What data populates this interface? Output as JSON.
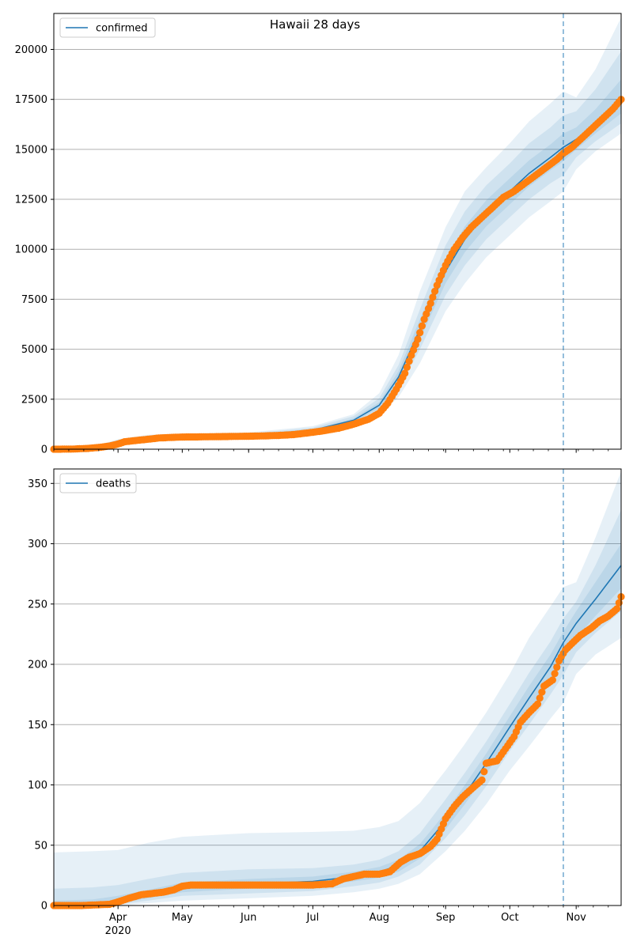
{
  "figure": {
    "title": "Hawaii 28 days",
    "colors": {
      "model": "#1f77b4",
      "observed": "#ff7f0e",
      "band": "#1f77b4",
      "grid": "#b0b0b0"
    }
  },
  "x_axis": {
    "type": "date",
    "domain": [
      "2020-03-02",
      "2020-11-22"
    ],
    "forecast_start": "2020-10-26",
    "ticks": [
      {
        "date": "2020-04-01",
        "label": "Apr",
        "year": "2020"
      },
      {
        "date": "2020-05-01",
        "label": "May"
      },
      {
        "date": "2020-06-01",
        "label": "Jun"
      },
      {
        "date": "2020-07-01",
        "label": "Jul"
      },
      {
        "date": "2020-08-01",
        "label": "Aug"
      },
      {
        "date": "2020-09-01",
        "label": "Sep"
      },
      {
        "date": "2020-10-01",
        "label": "Oct"
      },
      {
        "date": "2020-11-01",
        "label": "Nov"
      }
    ]
  },
  "chart_data": [
    {
      "type": "line",
      "legend": "confirmed",
      "legend_position": "top-left",
      "grid": "y",
      "ylim": [
        0,
        21800
      ],
      "yticks": [
        "0",
        "2500",
        "5000",
        "7500",
        "10000",
        "12500",
        "15000",
        "17500",
        "20000"
      ],
      "model_x": [
        "2020-03-02",
        "2020-03-20",
        "2020-04-01",
        "2020-04-15",
        "2020-05-01",
        "2020-06-01",
        "2020-07-01",
        "2020-07-20",
        "2020-08-01",
        "2020-08-10",
        "2020-08-20",
        "2020-09-01",
        "2020-09-10",
        "2020-09-20",
        "2020-10-01",
        "2020-10-10",
        "2020-10-20",
        "2020-10-26",
        "2020-11-01",
        "2020-11-10",
        "2020-11-22"
      ],
      "model_y": [
        0,
        80,
        380,
        560,
        630,
        690,
        950,
        1450,
        2200,
        3600,
        6000,
        8900,
        10500,
        11800,
        12900,
        13800,
        14600,
        15100,
        15500,
        16300,
        17300
      ],
      "bands": [
        {
          "lower": [
            0,
            40,
            260,
            420,
            500,
            560,
            800,
            1200,
            1750,
            2600,
            4300,
            6900,
            8300,
            9600,
            10700,
            11600,
            12400,
            12900,
            14000,
            14900,
            15800
          ],
          "upper": [
            0,
            130,
            500,
            720,
            780,
            840,
            1150,
            1750,
            2800,
            4700,
            7900,
            11100,
            12900,
            14100,
            15300,
            16400,
            17300,
            17900,
            17600,
            19000,
            21600
          ]
        },
        {
          "lower": [
            0,
            50,
            300,
            470,
            550,
            610,
            850,
            1300,
            1900,
            3000,
            5000,
            7700,
            9200,
            10500,
            11600,
            12500,
            13300,
            13700,
            14600,
            15400,
            16300
          ],
          "upper": [
            0,
            115,
            460,
            660,
            720,
            780,
            1080,
            1650,
            2550,
            4200,
            7000,
            10200,
            11900,
            13200,
            14300,
            15300,
            16100,
            16700,
            16900,
            18000,
            19900
          ]
        },
        {
          "lower": [
            0,
            60,
            340,
            510,
            590,
            650,
            900,
            1370,
            2050,
            3300,
            5500,
            8300,
            9850,
            11150,
            12250,
            13150,
            13950,
            14400,
            15000,
            15800,
            16800
          ],
          "upper": [
            0,
            100,
            420,
            610,
            670,
            730,
            1010,
            1540,
            2350,
            3900,
            6500,
            9500,
            11150,
            12450,
            13550,
            14450,
            15250,
            15800,
            16100,
            17000,
            18500
          ]
        }
      ],
      "observed": [
        [
          "2020-03-02",
          0
        ],
        [
          "2020-03-10",
          5
        ],
        [
          "2020-03-18",
          40
        ],
        [
          "2020-03-24",
          100
        ],
        [
          "2020-03-28",
          160
        ],
        [
          "2020-04-01",
          260
        ],
        [
          "2020-04-04",
          370
        ],
        [
          "2020-04-09",
          430
        ],
        [
          "2020-04-15",
          500
        ],
        [
          "2020-04-20",
          560
        ],
        [
          "2020-04-26",
          590
        ],
        [
          "2020-05-01",
          610
        ],
        [
          "2020-05-08",
          615
        ],
        [
          "2020-05-15",
          625
        ],
        [
          "2020-05-22",
          635
        ],
        [
          "2020-06-01",
          650
        ],
        [
          "2020-06-08",
          665
        ],
        [
          "2020-06-15",
          690
        ],
        [
          "2020-06-22",
          730
        ],
        [
          "2020-06-29",
          820
        ],
        [
          "2020-07-06",
          920
        ],
        [
          "2020-07-13",
          1050
        ],
        [
          "2020-07-20",
          1250
        ],
        [
          "2020-07-27",
          1500
        ],
        [
          "2020-08-01",
          1800
        ],
        [
          "2020-08-05",
          2300
        ],
        [
          "2020-08-09",
          3000
        ],
        [
          "2020-08-13",
          3800
        ],
        [
          "2020-08-16",
          4700
        ],
        [
          "2020-08-19",
          5500
        ],
        [
          "2020-08-22",
          6500
        ],
        [
          "2020-08-25",
          7300
        ],
        [
          "2020-08-28",
          8200
        ],
        [
          "2020-09-01",
          9200
        ],
        [
          "2020-09-05",
          10000
        ],
        [
          "2020-09-09",
          10600
        ],
        [
          "2020-09-13",
          11100
        ],
        [
          "2020-09-18",
          11600
        ],
        [
          "2020-09-23",
          12100
        ],
        [
          "2020-09-28",
          12600
        ],
        [
          "2020-10-03",
          12900
        ],
        [
          "2020-10-08",
          13300
        ],
        [
          "2020-10-13",
          13700
        ],
        [
          "2020-10-18",
          14100
        ],
        [
          "2020-10-23",
          14500
        ],
        [
          "2020-10-26",
          14800
        ],
        [
          "2020-10-30",
          15100
        ],
        [
          "2020-11-04",
          15600
        ],
        [
          "2020-11-09",
          16100
        ],
        [
          "2020-11-14",
          16600
        ],
        [
          "2020-11-18",
          17000
        ],
        [
          "2020-11-22",
          17500
        ]
      ]
    },
    {
      "type": "line",
      "legend": "deaths",
      "legend_position": "top-left",
      "grid": "y",
      "ylim": [
        0,
        362
      ],
      "yticks": [
        "0",
        "50",
        "100",
        "150",
        "200",
        "250",
        "300",
        "350"
      ],
      "model_x": [
        "2020-03-02",
        "2020-03-20",
        "2020-04-01",
        "2020-04-15",
        "2020-05-01",
        "2020-06-01",
        "2020-07-01",
        "2020-07-20",
        "2020-08-01",
        "2020-08-10",
        "2020-08-20",
        "2020-09-01",
        "2020-09-10",
        "2020-09-20",
        "2020-10-01",
        "2020-10-10",
        "2020-10-20",
        "2020-10-26",
        "2020-11-01",
        "2020-11-10",
        "2020-11-22"
      ],
      "model_y": [
        0,
        1,
        4,
        9,
        15,
        18,
        20,
        24,
        28,
        33,
        45,
        70,
        92,
        118,
        148,
        172,
        198,
        218,
        234,
        254,
        282
      ],
      "bands": [
        {
          "lower": [
            0,
            0,
            0,
            2,
            4,
            6,
            8,
            11,
            14,
            18,
            26,
            45,
            62,
            84,
            112,
            132,
            155,
            168,
            192,
            208,
            222
          ],
          "upper": [
            44,
            45,
            46,
            52,
            57,
            60,
            61,
            62,
            65,
            70,
            85,
            112,
            134,
            160,
            192,
            222,
            248,
            264,
            268,
            305,
            360
          ]
        },
        {
          "lower": [
            0,
            0,
            1,
            4,
            8,
            10,
            12,
            16,
            19,
            24,
            34,
            56,
            75,
            99,
            128,
            150,
            175,
            191,
            210,
            226,
            244
          ],
          "upper": [
            14,
            15,
            17,
            22,
            27,
            30,
            31,
            34,
            38,
            45,
            60,
            88,
            110,
            136,
            167,
            193,
            219,
            238,
            252,
            282,
            328
          ]
        },
        {
          "lower": [
            0,
            0,
            2,
            6,
            11,
            14,
            16,
            20,
            23,
            28,
            39,
            63,
            84,
            109,
            138,
            161,
            186,
            204,
            222,
            240,
            263
          ],
          "upper": [
            4,
            5,
            8,
            13,
            19,
            22,
            24,
            28,
            32,
            38,
            51,
            77,
            100,
            126,
            157,
            182,
            208,
            227,
            244,
            268,
            300
          ]
        }
      ],
      "observed": [
        [
          "2020-03-02",
          0
        ],
        [
          "2020-03-15",
          0
        ],
        [
          "2020-03-28",
          1
        ],
        [
          "2020-04-01",
          3
        ],
        [
          "2020-04-06",
          6
        ],
        [
          "2020-04-12",
          9
        ],
        [
          "2020-04-22",
          11
        ],
        [
          "2020-04-27",
          13
        ],
        [
          "2020-05-01",
          16
        ],
        [
          "2020-05-05",
          17
        ],
        [
          "2020-05-20",
          17
        ],
        [
          "2020-06-10",
          17
        ],
        [
          "2020-07-01",
          17
        ],
        [
          "2020-07-10",
          18
        ],
        [
          "2020-07-15",
          22
        ],
        [
          "2020-07-20",
          24
        ],
        [
          "2020-07-25",
          26
        ],
        [
          "2020-08-01",
          26
        ],
        [
          "2020-08-06",
          28
        ],
        [
          "2020-08-11",
          36
        ],
        [
          "2020-08-15",
          40
        ],
        [
          "2020-08-20",
          43
        ],
        [
          "2020-08-25",
          49
        ],
        [
          "2020-08-28",
          55
        ],
        [
          "2020-09-01",
          72
        ],
        [
          "2020-09-05",
          82
        ],
        [
          "2020-09-09",
          90
        ],
        [
          "2020-09-14",
          98
        ],
        [
          "2020-09-18",
          104
        ],
        [
          "2020-09-20",
          118
        ],
        [
          "2020-09-25",
          120
        ],
        [
          "2020-09-29",
          130
        ],
        [
          "2020-10-03",
          140
        ],
        [
          "2020-10-06",
          152
        ],
        [
          "2020-10-10",
          160
        ],
        [
          "2020-10-14",
          167
        ],
        [
          "2020-10-17",
          182
        ],
        [
          "2020-10-21",
          187
        ],
        [
          "2020-10-24",
          203
        ],
        [
          "2020-10-27",
          212
        ],
        [
          "2020-10-31",
          219
        ],
        [
          "2020-11-03",
          224
        ],
        [
          "2020-11-08",
          230
        ],
        [
          "2020-11-12",
          236
        ],
        [
          "2020-11-16",
          240
        ],
        [
          "2020-11-20",
          246
        ],
        [
          "2020-11-22",
          256
        ]
      ]
    }
  ]
}
